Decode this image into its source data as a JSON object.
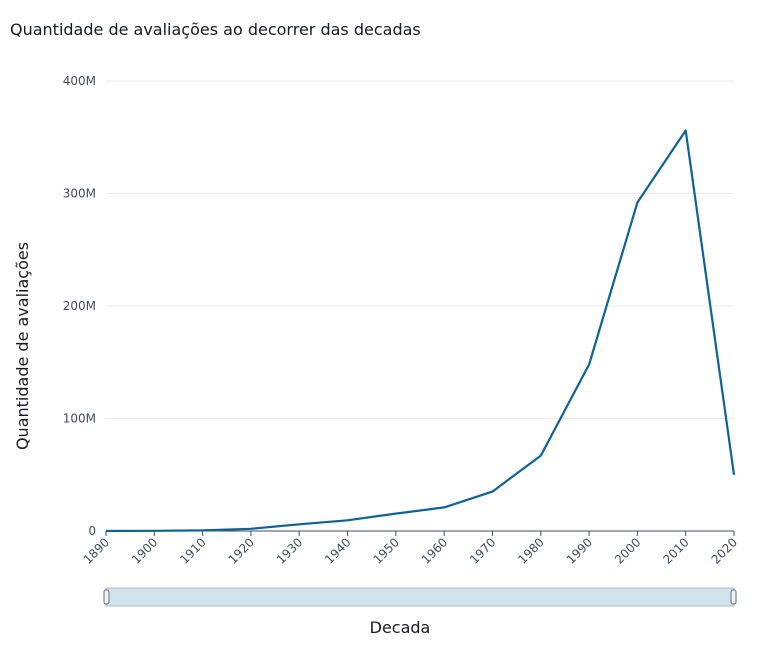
{
  "chart_data": {
    "type": "line",
    "title": "Quantidade de avaliações ao decorrer das decadas",
    "xlabel": "Decada",
    "ylabel": "Quantidade de avaliações",
    "x": [
      "1890",
      "1900",
      "1910",
      "1920",
      "1930",
      "1940",
      "1950",
      "1960",
      "1970",
      "1980",
      "1990",
      "2000",
      "2010",
      "2020"
    ],
    "series": [
      {
        "values": [
          0,
          0.2,
          0.5,
          2,
          6,
          9.5,
          15.5,
          21,
          35,
          67,
          148,
          292,
          356,
          50
        ]
      }
    ],
    "y_unit": "M",
    "ylim": [
      0,
      400
    ],
    "yticks": [
      "0",
      "100M",
      "200M",
      "300M",
      "400M"
    ],
    "grid": true,
    "legend": "none",
    "colors": {
      "line": "#0d6396",
      "slider_fill": "#d1e4ed"
    }
  }
}
